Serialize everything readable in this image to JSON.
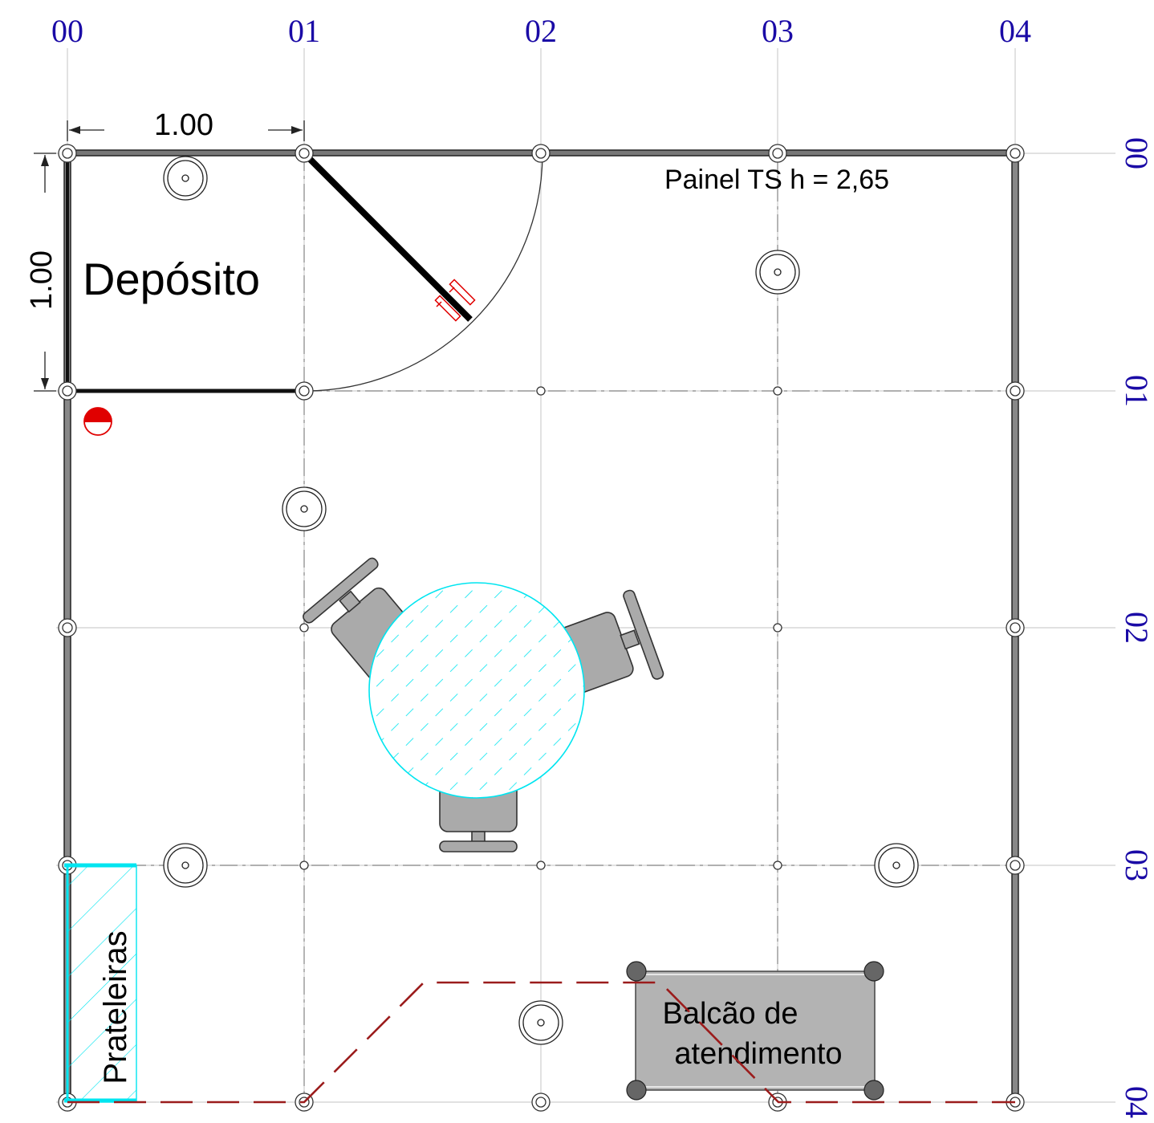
{
  "grid": {
    "columns": [
      "00",
      "01",
      "02",
      "03",
      "04"
    ],
    "rows": [
      "00",
      "01",
      "02",
      "03",
      "04"
    ]
  },
  "dimensions": {
    "horizontal": "1.00",
    "vertical": "1.00"
  },
  "labels": {
    "room": "Depósito",
    "panel": "Painel TS h = 2,65",
    "shelves": "Prateleiras",
    "counter_line1": "Balcão de",
    "counter_line2": "atendimento"
  },
  "colors": {
    "grid_label": "#1a0aa6",
    "table_hatch": "#00e5f0",
    "counter": "#b3b3b3",
    "counter_boundary": "#9b1c1c",
    "extinguisher": "#e00000",
    "wall": "#222222"
  },
  "icons": [
    "light-fixture-icon",
    "fire-extinguisher-icon",
    "chair-icon",
    "door-icon"
  ]
}
